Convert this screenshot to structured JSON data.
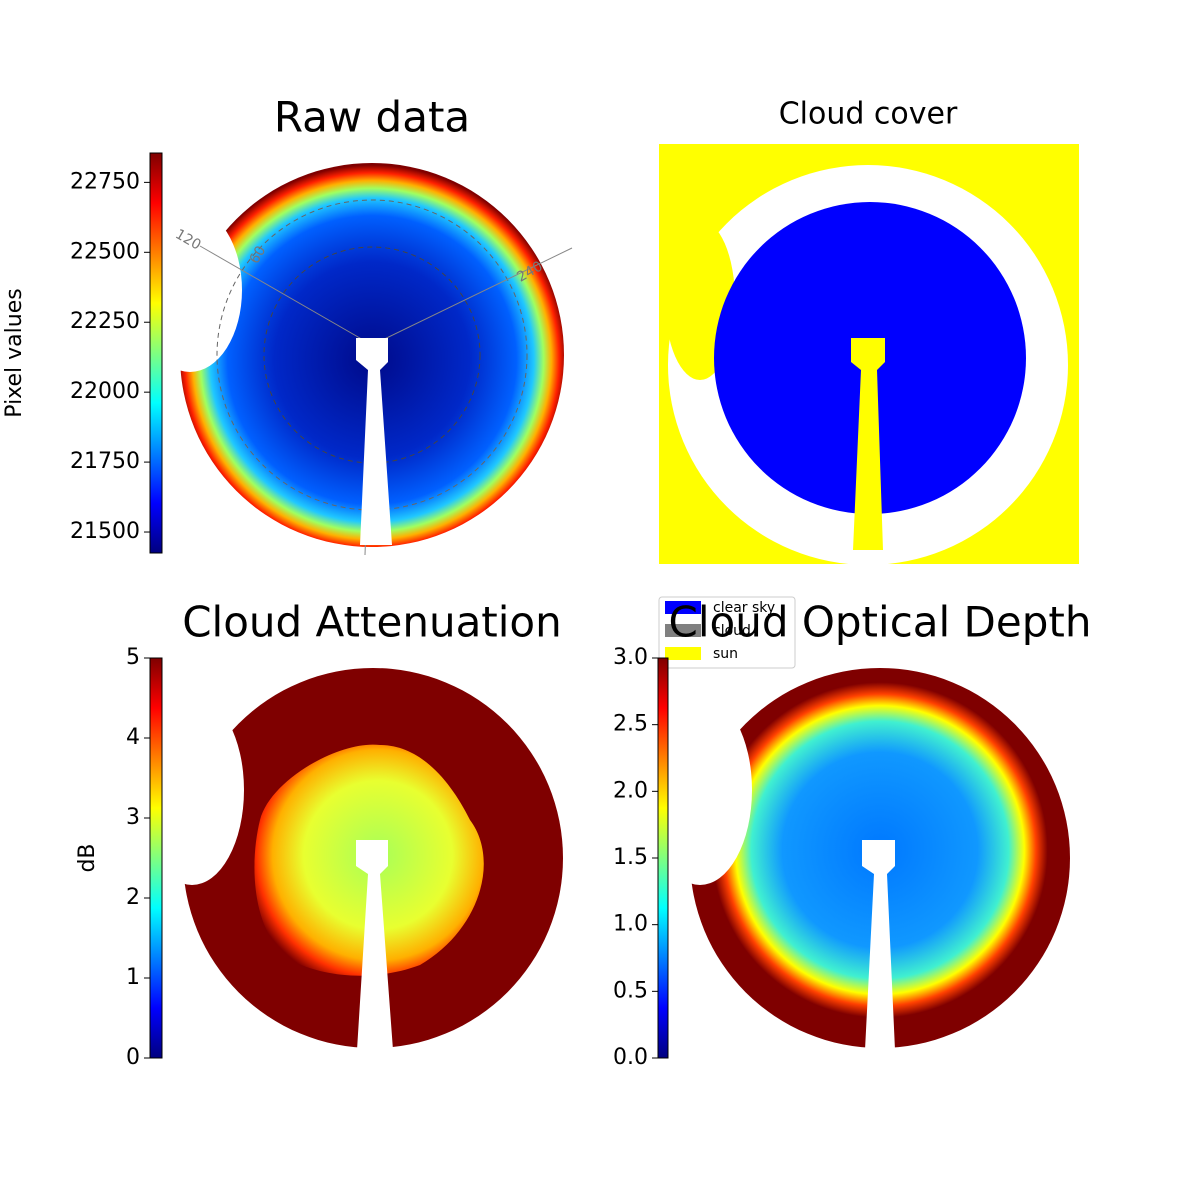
{
  "chart_data": [
    {
      "type": "image",
      "title": "Raw data",
      "colorbar_label": "Pixel values",
      "colormap": "jet",
      "ylim": [
        21425,
        22855
      ],
      "yticks": [
        21500,
        21750,
        22000,
        22250,
        22500,
        22750
      ],
      "annotations": [
        "120",
        "60",
        "240"
      ]
    },
    {
      "type": "image",
      "title": "Cloud cover",
      "series": [
        {
          "name": "clear sky",
          "color": "#0000ff"
        },
        {
          "name": "cloud",
          "color": "#808080"
        },
        {
          "name": "sun",
          "color": "#ffff00"
        }
      ]
    },
    {
      "type": "image",
      "title": "Cloud Attenuation",
      "colorbar_label": "dB",
      "colormap": "jet",
      "ylim": [
        0,
        5
      ],
      "yticks": [
        0,
        1,
        2,
        3,
        4,
        5
      ]
    },
    {
      "type": "image",
      "title": "Cloud Optical Depth",
      "colormap": "jet",
      "ylim": [
        0,
        3
      ],
      "yticks": [
        {
          "value": 0,
          "label": "0.0"
        },
        {
          "value": 0.5,
          "label": "0.5"
        },
        {
          "value": 1,
          "label": "1.0"
        },
        {
          "value": 1.5,
          "label": "1.5"
        },
        {
          "value": 2,
          "label": "2.0"
        },
        {
          "value": 2.5,
          "label": "2.5"
        },
        {
          "value": 3,
          "label": "3.0"
        }
      ]
    }
  ]
}
